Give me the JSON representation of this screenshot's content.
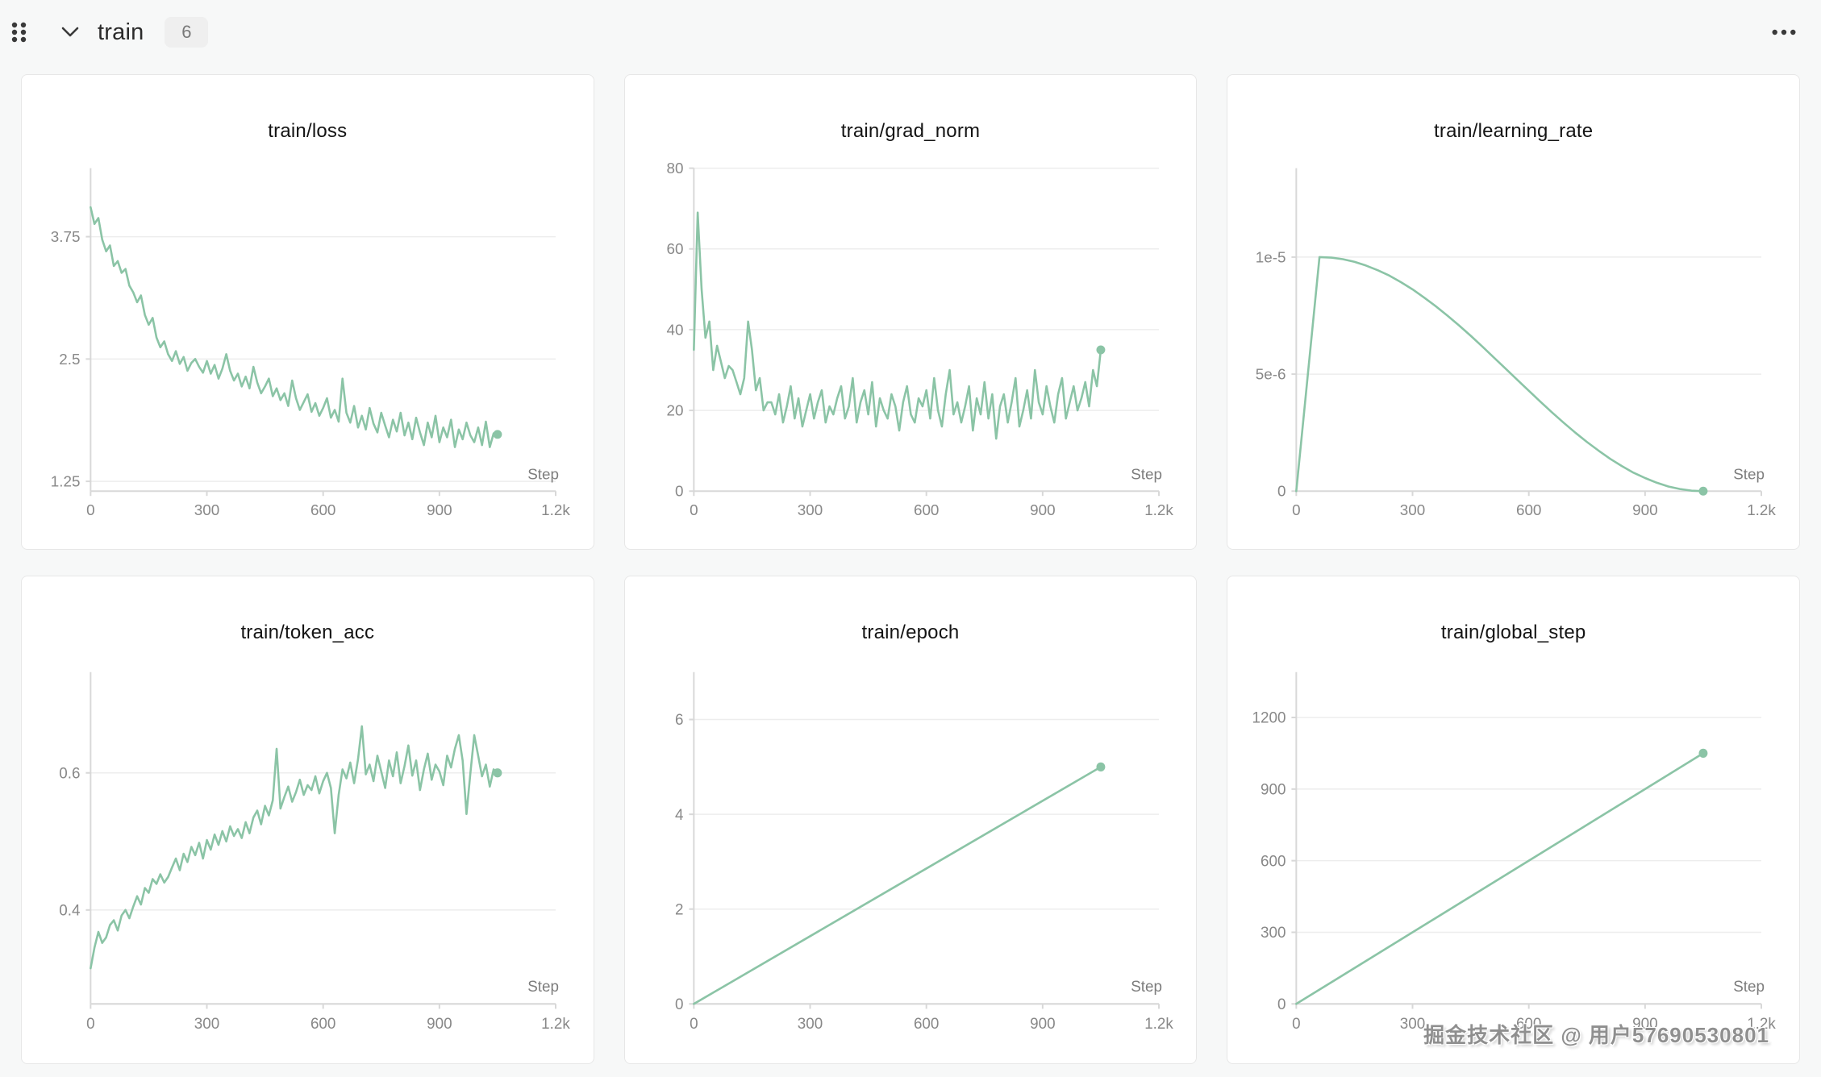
{
  "header": {
    "title": "train",
    "badge_count": "6"
  },
  "watermark": {
    "text": "掘金技术社区 @ 用户57690530801"
  },
  "colors": {
    "accent": "#8bc4a6",
    "axis": "#d8d8d8",
    "grid": "#ededed",
    "tick_text": "#888888",
    "step_text": "#7d7d7d",
    "title_text": "#141414",
    "icon": "#3a3a3a"
  },
  "chart_data": [
    {
      "type": "line",
      "title": "train/loss",
      "xlabel": "Step",
      "legend": "none",
      "grid": "horizontal",
      "xlim": [
        0,
        1200
      ],
      "xticks": [
        {
          "v": 0,
          "label": "0"
        },
        {
          "v": 300,
          "label": "300"
        },
        {
          "v": 600,
          "label": "600"
        },
        {
          "v": 900,
          "label": "900"
        },
        {
          "v": 1200,
          "label": "1.2k"
        }
      ],
      "ylim": [
        1.15,
        4.45
      ],
      "yticks": [
        {
          "v": 1.25,
          "label": "1.25"
        },
        {
          "v": 2.5,
          "label": "2.5"
        },
        {
          "v": 3.75,
          "label": "3.75"
        }
      ],
      "end_marker": true,
      "series": {
        "x_start": 0,
        "x_step": 10,
        "values": [
          4.05,
          3.88,
          3.94,
          3.72,
          3.6,
          3.66,
          3.45,
          3.5,
          3.38,
          3.42,
          3.25,
          3.18,
          3.08,
          3.15,
          2.95,
          2.85,
          2.92,
          2.72,
          2.62,
          2.68,
          2.55,
          2.48,
          2.58,
          2.45,
          2.52,
          2.38,
          2.46,
          2.5,
          2.42,
          2.36,
          2.48,
          2.35,
          2.44,
          2.3,
          2.4,
          2.55,
          2.38,
          2.28,
          2.35,
          2.22,
          2.32,
          2.2,
          2.42,
          2.26,
          2.15,
          2.22,
          2.3,
          2.12,
          2.2,
          2.08,
          2.15,
          2.02,
          2.28,
          2.1,
          1.98,
          2.06,
          2.14,
          1.96,
          2.05,
          1.92,
          2.0,
          2.1,
          1.9,
          1.98,
          1.86,
          2.3,
          1.95,
          1.85,
          2.02,
          1.8,
          1.92,
          1.78,
          2.0,
          1.84,
          1.75,
          1.95,
          1.82,
          1.7,
          1.88,
          1.76,
          1.95,
          1.72,
          1.85,
          1.68,
          1.9,
          1.75,
          1.62,
          1.85,
          1.7,
          1.92,
          1.65,
          1.8,
          1.7,
          1.88,
          1.6,
          1.78,
          1.68,
          1.85,
          1.72,
          1.65,
          1.8,
          1.62,
          1.86,
          1.6,
          1.74,
          1.73
        ]
      }
    },
    {
      "type": "line",
      "title": "train/grad_norm",
      "xlabel": "Step",
      "legend": "none",
      "grid": "horizontal",
      "xlim": [
        0,
        1200
      ],
      "xticks": [
        {
          "v": 0,
          "label": "0"
        },
        {
          "v": 300,
          "label": "300"
        },
        {
          "v": 600,
          "label": "600"
        },
        {
          "v": 900,
          "label": "900"
        },
        {
          "v": 1200,
          "label": "1.2k"
        }
      ],
      "ylim": [
        0,
        80
      ],
      "yticks": [
        {
          "v": 0,
          "label": "0"
        },
        {
          "v": 20,
          "label": "20"
        },
        {
          "v": 40,
          "label": "40"
        },
        {
          "v": 60,
          "label": "60"
        },
        {
          "v": 80,
          "label": "80"
        }
      ],
      "end_marker": true,
      "series": {
        "x_start": 0,
        "x_step": 10,
        "values": [
          35,
          69,
          50,
          38,
          42,
          30,
          36,
          32,
          28,
          31,
          30,
          27,
          24,
          28,
          42,
          35,
          25,
          28,
          20,
          22,
          22,
          19,
          24,
          17,
          21,
          26,
          18,
          23,
          16,
          20,
          24,
          18,
          22,
          25,
          17,
          21,
          19,
          23,
          26,
          18,
          21,
          28,
          17,
          22,
          25,
          19,
          27,
          16,
          23,
          20,
          18,
          24,
          21,
          15,
          22,
          26,
          19,
          17,
          23,
          21,
          25,
          18,
          28,
          20,
          16,
          24,
          30,
          19,
          22,
          17,
          21,
          26,
          15,
          23,
          19,
          27,
          18,
          24,
          13,
          21,
          24,
          17,
          22,
          28,
          16,
          20,
          25,
          18,
          30,
          22,
          19,
          26,
          21,
          17,
          24,
          28,
          18,
          22,
          26,
          20,
          23,
          27,
          21,
          30,
          26,
          35
        ]
      }
    },
    {
      "type": "line",
      "title": "train/learning_rate",
      "xlabel": "Step",
      "legend": "none",
      "grid": "horizontal",
      "xlim": [
        0,
        1200
      ],
      "xticks": [
        {
          "v": 0,
          "label": "0"
        },
        {
          "v": 300,
          "label": "300"
        },
        {
          "v": 600,
          "label": "600"
        },
        {
          "v": 900,
          "label": "900"
        },
        {
          "v": 1200,
          "label": "1.2k"
        }
      ],
      "ylim": [
        0,
        1.38e-05
      ],
      "yticks": [
        {
          "v": 0,
          "label": "0"
        },
        {
          "v": 5e-06,
          "label": "5e-6"
        },
        {
          "v": 1e-05,
          "label": "1e-5"
        }
      ],
      "end_marker": true,
      "series": {
        "points": [
          [
            0,
            0
          ],
          [
            30,
            5e-06
          ],
          [
            60,
            1e-05
          ],
          [
            90,
            9.98e-06
          ],
          [
            120,
            9.91e-06
          ],
          [
            150,
            9.8e-06
          ],
          [
            180,
            9.64e-06
          ],
          [
            210,
            9.44e-06
          ],
          [
            240,
            9.21e-06
          ],
          [
            270,
            8.93e-06
          ],
          [
            300,
            8.62e-06
          ],
          [
            330,
            8.27e-06
          ],
          [
            360,
            7.9e-06
          ],
          [
            390,
            7.5e-06
          ],
          [
            420,
            7.08e-06
          ],
          [
            450,
            6.64e-06
          ],
          [
            480,
            6.18e-06
          ],
          [
            510,
            5.71e-06
          ],
          [
            540,
            5.24e-06
          ],
          [
            570,
            4.76e-06
          ],
          [
            600,
            4.29e-06
          ],
          [
            630,
            3.82e-06
          ],
          [
            660,
            3.36e-06
          ],
          [
            690,
            2.92e-06
          ],
          [
            720,
            2.5e-06
          ],
          [
            750,
            2.1e-06
          ],
          [
            780,
            1.73e-06
          ],
          [
            810,
            1.38e-06
          ],
          [
            840,
            1.07e-06
          ],
          [
            870,
            7.9e-07
          ],
          [
            900,
            5.6e-07
          ],
          [
            930,
            3.6e-07
          ],
          [
            960,
            2e-07
          ],
          [
            990,
            9e-08
          ],
          [
            1020,
            2e-08
          ],
          [
            1050,
            0
          ]
        ]
      }
    },
    {
      "type": "line",
      "title": "train/token_acc",
      "xlabel": "Step",
      "legend": "none",
      "grid": "horizontal",
      "xlim": [
        0,
        1200
      ],
      "xticks": [
        {
          "v": 0,
          "label": "0"
        },
        {
          "v": 300,
          "label": "300"
        },
        {
          "v": 600,
          "label": "600"
        },
        {
          "v": 900,
          "label": "900"
        },
        {
          "v": 1200,
          "label": "1.2k"
        }
      ],
      "ylim": [
        0.263,
        0.747
      ],
      "yticks": [
        {
          "v": 0.4,
          "label": "0.4"
        },
        {
          "v": 0.6,
          "label": "0.6"
        }
      ],
      "end_marker": true,
      "series": {
        "x_start": 0,
        "x_step": 10,
        "values": [
          0.315,
          0.345,
          0.368,
          0.352,
          0.36,
          0.378,
          0.385,
          0.37,
          0.392,
          0.4,
          0.388,
          0.405,
          0.42,
          0.408,
          0.432,
          0.425,
          0.445,
          0.438,
          0.452,
          0.44,
          0.448,
          0.462,
          0.475,
          0.458,
          0.482,
          0.47,
          0.492,
          0.48,
          0.498,
          0.475,
          0.502,
          0.488,
          0.51,
          0.495,
          0.515,
          0.5,
          0.522,
          0.508,
          0.518,
          0.505,
          0.528,
          0.512,
          0.535,
          0.545,
          0.525,
          0.552,
          0.538,
          0.56,
          0.635,
          0.548,
          0.565,
          0.58,
          0.558,
          0.572,
          0.59,
          0.568,
          0.582,
          0.575,
          0.595,
          0.57,
          0.588,
          0.6,
          0.578,
          0.512,
          0.568,
          0.605,
          0.592,
          0.615,
          0.585,
          0.62,
          0.668,
          0.598,
          0.612,
          0.588,
          0.625,
          0.602,
          0.578,
          0.618,
          0.595,
          0.63,
          0.585,
          0.61,
          0.64,
          0.596,
          0.618,
          0.575,
          0.605,
          0.628,
          0.59,
          0.612,
          0.602,
          0.582,
          0.625,
          0.608,
          0.635,
          0.655,
          0.618,
          0.54,
          0.6,
          0.655,
          0.625,
          0.595,
          0.612,
          0.58,
          0.605,
          0.6
        ]
      }
    },
    {
      "type": "line",
      "title": "train/epoch",
      "xlabel": "Step",
      "legend": "none",
      "grid": "horizontal",
      "xlim": [
        0,
        1200
      ],
      "xticks": [
        {
          "v": 0,
          "label": "0"
        },
        {
          "v": 300,
          "label": "300"
        },
        {
          "v": 600,
          "label": "600"
        },
        {
          "v": 900,
          "label": "900"
        },
        {
          "v": 1200,
          "label": "1.2k"
        }
      ],
      "ylim": [
        0,
        7
      ],
      "yticks": [
        {
          "v": 0,
          "label": "0"
        },
        {
          "v": 2,
          "label": "2"
        },
        {
          "v": 4,
          "label": "4"
        },
        {
          "v": 6,
          "label": "6"
        }
      ],
      "end_marker": true,
      "series": {
        "points": [
          [
            0,
            0
          ],
          [
            1050,
            5
          ]
        ]
      }
    },
    {
      "type": "line",
      "title": "train/global_step",
      "xlabel": "Step",
      "legend": "none",
      "grid": "horizontal",
      "xlim": [
        0,
        1200
      ],
      "xticks": [
        {
          "v": 0,
          "label": "0"
        },
        {
          "v": 300,
          "label": "300"
        },
        {
          "v": 600,
          "label": "600"
        },
        {
          "v": 900,
          "label": "900"
        },
        {
          "v": 1200,
          "label": "1.2k"
        }
      ],
      "ylim": [
        0,
        1390
      ],
      "yticks": [
        {
          "v": 0,
          "label": "0"
        },
        {
          "v": 300,
          "label": "300"
        },
        {
          "v": 600,
          "label": "600"
        },
        {
          "v": 900,
          "label": "900"
        },
        {
          "v": 1200,
          "label": "1200"
        }
      ],
      "end_marker": true,
      "series": {
        "points": [
          [
            0,
            0
          ],
          [
            1050,
            1050
          ]
        ]
      }
    }
  ]
}
